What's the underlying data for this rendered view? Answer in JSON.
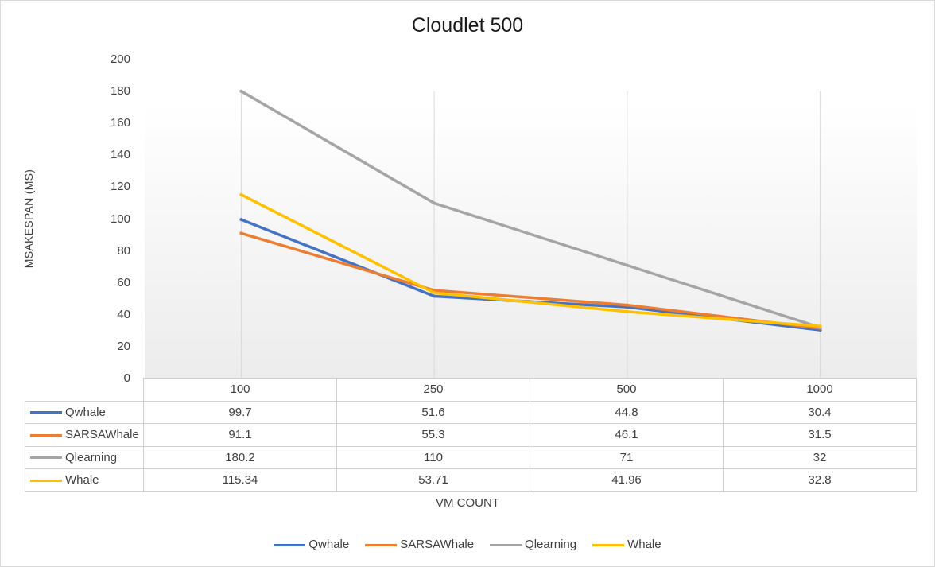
{
  "chart_data": {
    "type": "line",
    "title": "Cloudlet 500",
    "xlabel": "VM COUNT",
    "ylabel": "MSAKESPAN (MS)",
    "categories": [
      "100",
      "250",
      "500",
      "1000"
    ],
    "ylim": [
      0,
      200
    ],
    "yticks": [
      "0",
      "20",
      "40",
      "60",
      "80",
      "100",
      "120",
      "140",
      "160",
      "180",
      "200"
    ],
    "grid": "vertical",
    "legend": "bottom",
    "data_table": true,
    "series": [
      {
        "name": "Qwhale",
        "color": "#4472C4",
        "values": [
          99.7,
          51.6,
          44.8,
          30.4
        ],
        "labels": [
          "99.7",
          "51.6",
          "44.8",
          "30.4"
        ]
      },
      {
        "name": "SARSAWhale",
        "color": "#ED7D31",
        "values": [
          91.1,
          55.3,
          46.1,
          31.5
        ],
        "labels": [
          "91.1",
          "55.3",
          "46.1",
          "31.5"
        ]
      },
      {
        "name": "Qlearning",
        "color": "#A5A5A5",
        "values": [
          180.2,
          110,
          71,
          32
        ],
        "labels": [
          "180.2",
          "110",
          "71",
          "32"
        ]
      },
      {
        "name": "Whale",
        "color": "#FFC000",
        "values": [
          115.34,
          53.71,
          41.96,
          32.8
        ],
        "labels": [
          "115.34",
          "53.71",
          "41.96",
          "32.8"
        ]
      }
    ]
  }
}
